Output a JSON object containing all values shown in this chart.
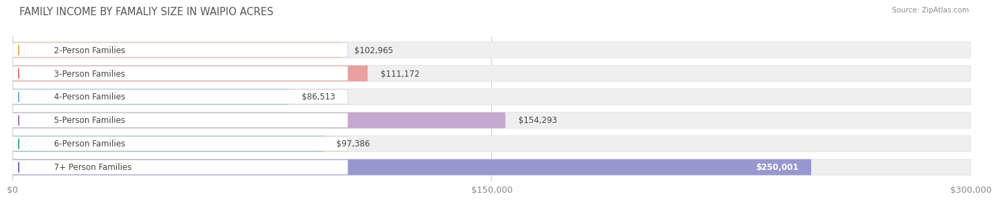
{
  "title": "FAMILY INCOME BY FAMALIY SIZE IN WAIPIO ACRES",
  "source": "Source: ZipAtlas.com",
  "categories": [
    "2-Person Families",
    "3-Person Families",
    "4-Person Families",
    "5-Person Families",
    "6-Person Families",
    "7+ Person Families"
  ],
  "values": [
    102965,
    111172,
    86513,
    154293,
    97386,
    250001
  ],
  "bar_colors": [
    "#f5c892",
    "#e8a0a0",
    "#aac4e8",
    "#c5a8d0",
    "#7dc8c0",
    "#9898d0"
  ],
  "dot_colors": [
    "#f5a855",
    "#e07070",
    "#7aaad8",
    "#a070c0",
    "#40a8a0",
    "#6868c0"
  ],
  "value_label_inside": [
    false,
    false,
    false,
    false,
    false,
    true
  ],
  "xlim": [
    0,
    300000
  ],
  "xticks": [
    0,
    150000,
    300000
  ],
  "xtick_labels": [
    "$0",
    "$150,000",
    "$300,000"
  ],
  "background_color": "#ffffff",
  "bar_bg_color": "#efefef",
  "title_fontsize": 10.5,
  "tick_fontsize": 9,
  "label_fontsize": 8.5,
  "value_fontsize": 8.5
}
